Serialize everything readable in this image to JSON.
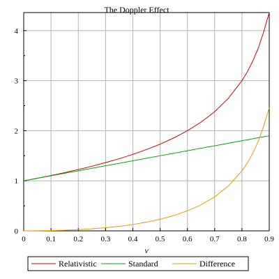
{
  "chart_data": {
    "type": "line",
    "title": "The Doppler Effect",
    "xlabel": "v",
    "ylabel": "",
    "xlim": [
      0,
      0.9
    ],
    "ylim": [
      0,
      4.36
    ],
    "grid": true,
    "legend_placement": "bottom",
    "x_ticks": [
      "0",
      "0.1",
      "0.2",
      "0.3",
      "0.4",
      "0.5",
      "0.6",
      "0.7",
      "0.8",
      "0.9"
    ],
    "y_ticks": [
      "0",
      "1",
      "2",
      "3",
      "4"
    ],
    "x": [
      0,
      0.05,
      0.1,
      0.15,
      0.2,
      0.25,
      0.3,
      0.35,
      0.4,
      0.45,
      0.5,
      0.55,
      0.6,
      0.65,
      0.7,
      0.75,
      0.8,
      0.82,
      0.84,
      0.86,
      0.88,
      0.89,
      0.9
    ],
    "series": [
      {
        "name": "Relativistic",
        "color": "#cc0000",
        "values": [
          1.0,
          1.051,
          1.106,
          1.163,
          1.225,
          1.291,
          1.363,
          1.441,
          1.528,
          1.624,
          1.732,
          1.856,
          2.0,
          2.171,
          2.38,
          2.646,
          3.0,
          3.179,
          3.394,
          3.654,
          3.979,
          4.175,
          4.359
        ]
      },
      {
        "name": "Standard",
        "color": "#00aa00",
        "values": [
          1.0,
          1.05,
          1.1,
          1.15,
          1.2,
          1.25,
          1.3,
          1.35,
          1.4,
          1.45,
          1.5,
          1.55,
          1.6,
          1.65,
          1.7,
          1.75,
          1.8,
          1.82,
          1.84,
          1.86,
          1.88,
          1.89,
          1.9
        ]
      },
      {
        "name": "Difference",
        "color": "#ee9900",
        "values": [
          0.0,
          0.001,
          0.006,
          0.013,
          0.025,
          0.041,
          0.063,
          0.091,
          0.128,
          0.174,
          0.232,
          0.306,
          0.4,
          0.521,
          0.68,
          0.896,
          1.2,
          1.359,
          1.554,
          1.794,
          2.099,
          2.285,
          2.459
        ]
      }
    ]
  }
}
